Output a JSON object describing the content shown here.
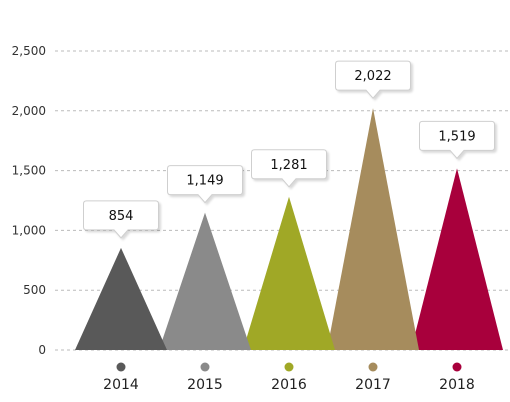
{
  "chart_data": {
    "type": "bar",
    "categories": [
      "2014",
      "2015",
      "2016",
      "2017",
      "2018"
    ],
    "values": [
      854,
      1149,
      1281,
      2022,
      1519
    ],
    "value_labels": [
      "854",
      "1,149",
      "1,281",
      "2,022",
      "1,519"
    ],
    "y_ticks": [
      0,
      500,
      1000,
      1500,
      2000,
      2500
    ],
    "y_tick_labels": [
      "0",
      "500",
      "1,000",
      "1,500",
      "2,000",
      "2,500"
    ],
    "ylim": [
      0,
      2500
    ],
    "grid": "horizontal dashed",
    "title": "",
    "xlabel": "",
    "ylabel": "",
    "colors": [
      "#595959",
      "#8a8a8a",
      "#a0a826",
      "#a68c5d",
      "#a8003c"
    ]
  }
}
